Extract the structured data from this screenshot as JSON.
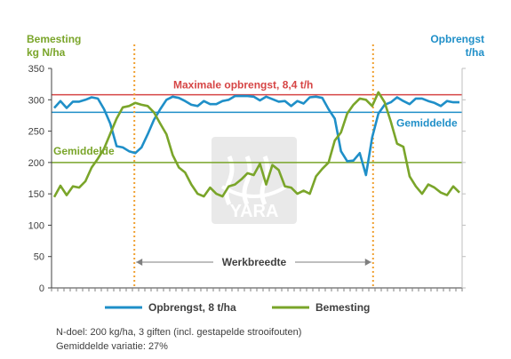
{
  "colors": {
    "yield": "#1f8fc8",
    "fertilizer": "#7aa52a",
    "max": "#d64545",
    "left_title": "#7aa52a",
    "right_title": "#1f8fc8",
    "work_width": "#f0a030",
    "axis": "#404040"
  },
  "chart_data": {
    "type": "line",
    "left_axis": {
      "title_line1": "Bemesting",
      "title_line2": "kg N/ha",
      "ylim": [
        0,
        350
      ],
      "ticks": [
        "0",
        "50",
        "100",
        "150",
        "200",
        "250",
        "300",
        "350"
      ]
    },
    "right_axis": {
      "title_line1": "Opbrengst",
      "title_line2": "t/ha"
    },
    "x_points": 66,
    "series": [
      {
        "name": "Opbrengst, 8 t/ha",
        "values": [
          287,
          298,
          287,
          297,
          297,
          300,
          304,
          302,
          285,
          262,
          226,
          224,
          218,
          215,
          224,
          245,
          268,
          285,
          300,
          305,
          303,
          298,
          292,
          290,
          298,
          293,
          293,
          298,
          300,
          306,
          306,
          306,
          305,
          299,
          305,
          301,
          297,
          298,
          290,
          298,
          294,
          304,
          305,
          303,
          285,
          270,
          218,
          202,
          203,
          215,
          180,
          240,
          278,
          292,
          296,
          304,
          298,
          293,
          302,
          302,
          298,
          295,
          290,
          298,
          296,
          296
        ]
      },
      {
        "name": "Bemesting",
        "values": [
          145,
          163,
          148,
          162,
          160,
          170,
          192,
          206,
          222,
          246,
          270,
          288,
          290,
          295,
          292,
          290,
          280,
          262,
          245,
          212,
          192,
          184,
          165,
          150,
          146,
          160,
          150,
          146,
          162,
          165,
          173,
          183,
          180,
          198,
          165,
          196,
          188,
          162,
          160,
          150,
          155,
          150,
          178,
          190,
          200,
          235,
          248,
          278,
          292,
          302,
          300,
          290,
          312,
          296,
          265,
          230,
          225,
          178,
          162,
          150,
          165,
          160,
          152,
          148,
          162,
          152
        ]
      }
    ],
    "annotations": {
      "max_label": "Maximale opbrengst, 8,4 t/h",
      "max_value": 308,
      "avg_label_left": "Gemiddelde",
      "avg_left_value": 200,
      "avg_label_right": "Gemiddelde",
      "avg_right_value": 280,
      "work_width_label": "Werkbreedte",
      "work_width_start_index": 13,
      "work_width_end_index": 51
    },
    "watermark": "YARA"
  },
  "legend": {
    "yield_label": "Opbrengst, 8 t/ha",
    "fert_label": "Bemesting"
  },
  "footnote": {
    "line1": "N-doel: 200 kg/ha, 3 giften (incl. gestapelde strooifouten)",
    "line2": "Gemiddelde variatie: 27%"
  }
}
